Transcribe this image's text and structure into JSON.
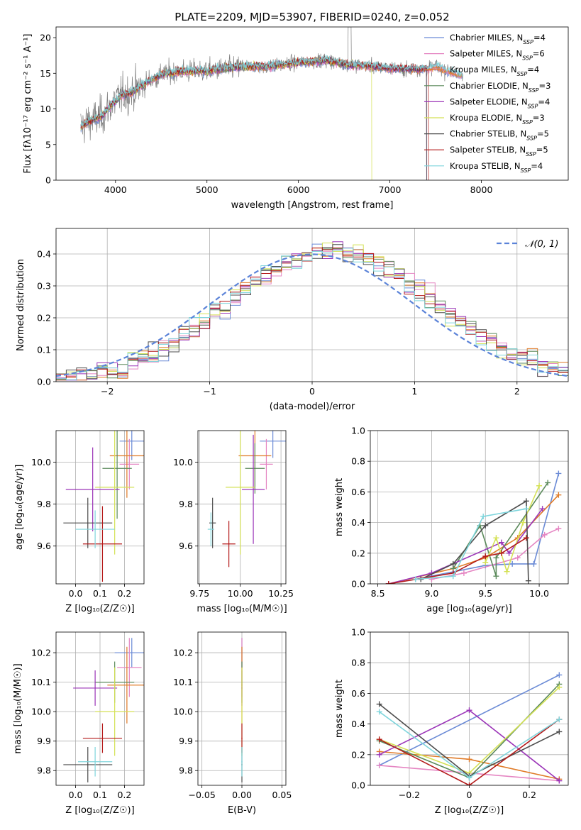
{
  "figure": {
    "title": "PLATE=2209, MJD=53907, FIBERID=0240, z=0.052"
  },
  "colors": [
    "#6b8bd6",
    "#e585c2",
    "#e07b28",
    "#5b8a5b",
    "#9b35b8",
    "#d4e155",
    "#4d4d4d",
    "#b41a1a",
    "#7fd5dc"
  ],
  "chart_data": [
    {
      "id": "spectrum",
      "type": "line",
      "xlabel": "wavelength [Angstrom, rest frame]",
      "ylabel": "Flux [fλ10⁻¹⁷ erg cm⁻² s⁻¹ A⁻¹]",
      "xlim": [
        3350,
        8950
      ],
      "ylim": [
        0,
        21.5
      ],
      "xticks": [
        4000,
        5000,
        6000,
        7000,
        8000
      ],
      "yticks": [
        0,
        5,
        10,
        15,
        20
      ],
      "grid": false,
      "legend": "upper-right",
      "data_color": "#7f7f7f",
      "data_continuum": [
        [
          3620,
          7.5
        ],
        [
          3700,
          8.2
        ],
        [
          3850,
          9.0
        ],
        [
          3950,
          10.5
        ],
        [
          4050,
          11.8
        ],
        [
          4200,
          12.5
        ],
        [
          4350,
          13.8
        ],
        [
          4500,
          14.8
        ],
        [
          4700,
          15.3
        ],
        [
          5000,
          15.3
        ],
        [
          5200,
          15.7
        ],
        [
          5400,
          15.9
        ],
        [
          5700,
          16.0
        ],
        [
          6000,
          16.5
        ],
        [
          6300,
          16.8
        ],
        [
          6560,
          16.2
        ],
        [
          6800,
          16.0
        ],
        [
          7000,
          15.7
        ],
        [
          7200,
          15.6
        ],
        [
          7400,
          15.6
        ],
        [
          7500,
          16.0
        ],
        [
          7700,
          15.0
        ],
        [
          7800,
          14.7
        ]
      ],
      "series": [
        {
          "name": "Chabrier MILES, N_SSP=4"
        },
        {
          "name": "Salpeter MILES, N_SSP=6"
        },
        {
          "name": "Kroupa MILES, N_SSP=4"
        },
        {
          "name": "Chabrier ELODIE, N_SSP=3"
        },
        {
          "name": "Salpeter ELODIE, N_SSP=4"
        },
        {
          "name": "Kroupa ELODIE, N_SSP=3"
        },
        {
          "name": "Chabrier STELIB, N_SSP=5"
        },
        {
          "name": "Salpeter STELIB, N_SSP=5"
        },
        {
          "name": "Kroupa STELIB, N_SSP=4"
        }
      ]
    },
    {
      "id": "residuals",
      "type": "line",
      "xlabel": "(data-model)/error",
      "ylabel": "Normed distribution",
      "xlim": [
        -2.5,
        2.5
      ],
      "ylim": [
        0,
        0.48
      ],
      "xticks": [
        -2,
        -1,
        0,
        1,
        2
      ],
      "yticks": [
        0.0,
        0.1,
        0.2,
        0.3,
        0.4
      ],
      "grid": true,
      "legend": "upper-right",
      "normal_curve_label": "𝒩(0, 1)",
      "bin_width": 0.1
    },
    {
      "id": "age_vs_Z",
      "type": "scatter",
      "xlabel": "Z [log₁₀(Z/Z☉)]",
      "ylabel": "age  [log₁₀(age/yr)]",
      "xlim": [
        -0.08,
        0.28
      ],
      "ylim": [
        9.42,
        10.15
      ],
      "xticks": [
        0.0,
        0.1,
        0.2
      ],
      "yticks": [
        9.6,
        9.8,
        10.0
      ],
      "grid": true,
      "points": [
        {
          "x": 0.23,
          "y": 10.1,
          "xerr": 0.05,
          "yerr": 0.09
        },
        {
          "x": 0.22,
          "y": 9.99,
          "xerr": 0.04,
          "yerr": 0.12
        },
        {
          "x": 0.21,
          "y": 10.03,
          "xerr": 0.07,
          "yerr": 0.2
        },
        {
          "x": 0.17,
          "y": 9.97,
          "xerr": 0.06,
          "yerr": 0.24
        },
        {
          "x": 0.07,
          "y": 9.87,
          "xerr": 0.11,
          "yerr": 0.2
        },
        {
          "x": 0.16,
          "y": 9.88,
          "xerr": 0.08,
          "yerr": 0.32
        },
        {
          "x": 0.05,
          "y": 9.71,
          "xerr": 0.1,
          "yerr": 0.12
        },
        {
          "x": 0.11,
          "y": 9.61,
          "xerr": 0.08,
          "yerr": 0.18
        },
        {
          "x": 0.08,
          "y": 9.68,
          "xerr": 0.08,
          "yerr": 0.09
        }
      ]
    },
    {
      "id": "age_vs_mass",
      "type": "scatter",
      "xlabel": "mass [log₁₀(M/M☉)]",
      "ylabel": "",
      "xlim": [
        9.74,
        10.28
      ],
      "ylim": [
        9.42,
        10.15
      ],
      "xticks": [
        9.75,
        10.0,
        10.25
      ],
      "yticks": [
        9.6,
        9.8,
        10.0
      ],
      "grid": true,
      "points": [
        {
          "x": 10.2,
          "y": 10.1,
          "xerr": 0.08,
          "yerr": 0.08
        },
        {
          "x": 10.16,
          "y": 9.99,
          "xerr": 0.04,
          "yerr": 0.12
        },
        {
          "x": 10.09,
          "y": 10.03,
          "xerr": 0.1,
          "yerr": 0.16
        },
        {
          "x": 10.09,
          "y": 9.97,
          "xerr": 0.06,
          "yerr": 0.12
        },
        {
          "x": 10.08,
          "y": 9.87,
          "xerr": 0.07,
          "yerr": 0.26
        },
        {
          "x": 10.0,
          "y": 9.88,
          "xerr": 0.09,
          "yerr": 0.32
        },
        {
          "x": 9.83,
          "y": 9.71,
          "xerr": 0.02,
          "yerr": 0.12
        },
        {
          "x": 9.93,
          "y": 9.61,
          "xerr": 0.04,
          "yerr": 0.11
        },
        {
          "x": 9.82,
          "y": 9.68,
          "xerr": 0.02,
          "yerr": 0.08
        }
      ]
    },
    {
      "id": "mass_weight_vs_age",
      "type": "line",
      "xlabel": "age  [log₁₀(age/yr)]",
      "ylabel": "mass weight",
      "xlim": [
        8.43,
        10.27
      ],
      "ylim": [
        0,
        1.0
      ],
      "xticks": [
        8.5,
        9.0,
        9.5,
        10.0
      ],
      "yticks": [
        0.0,
        0.2,
        0.4,
        0.6,
        0.8,
        1.0
      ],
      "grid": true,
      "series": [
        {
          "points": [
            [
              8.85,
              0.03
            ],
            [
              9.5,
              0.12
            ],
            [
              9.75,
              0.13
            ],
            [
              9.95,
              0.13
            ],
            [
              10.18,
              0.72
            ]
          ]
        },
        {
          "points": [
            [
              9.0,
              0.03
            ],
            [
              9.3,
              0.07
            ],
            [
              9.8,
              0.17
            ],
            [
              10.05,
              0.32
            ],
            [
              10.18,
              0.36
            ]
          ]
        },
        {
          "points": [
            [
              8.6,
              0.0
            ],
            [
              9.2,
              0.1
            ],
            [
              9.5,
              0.17
            ],
            [
              9.8,
              0.3
            ],
            [
              10.18,
              0.58
            ]
          ]
        },
        {
          "points": [
            [
              9.2,
              0.1
            ],
            [
              9.45,
              0.38
            ],
            [
              9.6,
              0.05
            ],
            [
              9.6,
              0.17
            ],
            [
              10.08,
              0.66
            ]
          ]
        },
        {
          "points": [
            [
              8.6,
              0.0
            ],
            [
              9.0,
              0.07
            ],
            [
              9.65,
              0.27
            ],
            [
              9.72,
              0.2
            ],
            [
              10.03,
              0.49
            ]
          ]
        },
        {
          "points": [
            [
              9.5,
              0.14
            ],
            [
              9.6,
              0.3
            ],
            [
              9.7,
              0.08
            ],
            [
              9.85,
              0.4
            ],
            [
              10.0,
              0.64
            ]
          ]
        },
        {
          "points": [
            [
              8.9,
              0.03
            ],
            [
              9.2,
              0.13
            ],
            [
              9.5,
              0.38
            ],
            [
              9.88,
              0.54
            ],
            [
              9.9,
              0.02
            ]
          ]
        },
        {
          "points": [
            [
              8.6,
              0.0
            ],
            [
              9.2,
              0.07
            ],
            [
              9.5,
              0.18
            ],
            [
              9.65,
              0.2
            ],
            [
              9.88,
              0.3
            ]
          ]
        },
        {
          "points": [
            [
              8.85,
              0.03
            ],
            [
              9.2,
              0.05
            ],
            [
              9.48,
              0.44
            ],
            [
              9.88,
              0.49
            ]
          ]
        }
      ]
    },
    {
      "id": "mass_vs_Z",
      "type": "scatter",
      "xlabel": "Z [log₁₀(Z/Z☉)]",
      "ylabel": "mass [log₁₀(M/M☉)]",
      "xlim": [
        -0.08,
        0.28
      ],
      "ylim": [
        9.75,
        10.27
      ],
      "xticks": [
        0.0,
        0.1,
        0.2
      ],
      "yticks": [
        9.8,
        9.9,
        10.0,
        10.1,
        10.2
      ],
      "grid": true,
      "points": [
        {
          "x": 0.23,
          "y": 10.2,
          "xerr": 0.07,
          "yerr": 0.05
        },
        {
          "x": 0.22,
          "y": 10.15,
          "xerr": 0.05,
          "yerr": 0.1
        },
        {
          "x": 0.21,
          "y": 10.09,
          "xerr": 0.08,
          "yerr": 0.13
        },
        {
          "x": 0.16,
          "y": 10.1,
          "xerr": 0.08,
          "yerr": 0.07
        },
        {
          "x": 0.08,
          "y": 10.08,
          "xerr": 0.09,
          "yerr": 0.06
        },
        {
          "x": 0.16,
          "y": 10.0,
          "xerr": 0.08,
          "yerr": 0.15
        },
        {
          "x": 0.05,
          "y": 9.82,
          "xerr": 0.1,
          "yerr": 0.06
        },
        {
          "x": 0.11,
          "y": 9.91,
          "xerr": 0.08,
          "yerr": 0.05
        },
        {
          "x": 0.08,
          "y": 9.83,
          "xerr": 0.07,
          "yerr": 0.05
        }
      ]
    },
    {
      "id": "mass_vs_ebv",
      "type": "scatter",
      "xlabel": "E(B-V)",
      "ylabel": "",
      "xlim": [
        -0.055,
        0.055
      ],
      "ylim": [
        9.75,
        10.27
      ],
      "xticks": [
        -0.05,
        0.0,
        0.05
      ],
      "yticks": [
        9.8,
        9.9,
        10.0,
        10.1,
        10.2
      ],
      "grid": true,
      "points": [
        {
          "x": 0.0,
          "y": 10.2,
          "yerr": 0.05
        },
        {
          "x": 0.0,
          "y": 10.15,
          "yerr": 0.1
        },
        {
          "x": 0.0,
          "y": 10.09,
          "yerr": 0.13
        },
        {
          "x": 0.0,
          "y": 10.1,
          "yerr": 0.07
        },
        {
          "x": 0.0,
          "y": 10.08,
          "yerr": 0.06
        },
        {
          "x": 0.0,
          "y": 10.0,
          "yerr": 0.15
        },
        {
          "x": 0.0,
          "y": 9.82,
          "yerr": 0.06
        },
        {
          "x": 0.0,
          "y": 9.91,
          "yerr": 0.05
        },
        {
          "x": 0.0,
          "y": 9.83,
          "yerr": 0.05
        }
      ]
    },
    {
      "id": "mass_weight_vs_Z",
      "type": "line",
      "xlabel": "Z [log₁₀(Z/Z☉)]",
      "ylabel": "mass weight",
      "xlim": [
        -0.33,
        0.33
      ],
      "ylim": [
        0,
        1.0
      ],
      "xticks": [
        -0.2,
        0.0,
        0.2
      ],
      "yticks": [
        0.0,
        0.2,
        0.4,
        0.6,
        0.8,
        1.0
      ],
      "grid": true,
      "series": [
        {
          "points": [
            [
              -0.3,
              0.13
            ],
            [
              0.3,
              0.72
            ]
          ]
        },
        {
          "points": [
            [
              -0.3,
              0.13
            ],
            [
              0.3,
              0.03
            ]
          ]
        },
        {
          "points": [
            [
              -0.3,
              0.22
            ],
            [
              0.0,
              0.17
            ],
            [
              0.3,
              0.04
            ]
          ]
        },
        {
          "points": [
            [
              -0.3,
              0.29
            ],
            [
              0.0,
              0.05
            ],
            [
              0.3,
              0.66
            ]
          ]
        },
        {
          "points": [
            [
              -0.3,
              0.2
            ],
            [
              0.0,
              0.49
            ],
            [
              0.3,
              0.03
            ]
          ]
        },
        {
          "points": [
            [
              -0.3,
              0.3
            ],
            [
              0.0,
              0.08
            ],
            [
              0.3,
              0.64
            ]
          ]
        },
        {
          "points": [
            [
              -0.3,
              0.53
            ],
            [
              0.0,
              0.06
            ],
            [
              0.3,
              0.35
            ]
          ]
        },
        {
          "points": [
            [
              -0.3,
              0.3
            ],
            [
              0.0,
              0.0
            ],
            [
              0.3,
              0.43
            ]
          ]
        },
        {
          "points": [
            [
              -0.3,
              0.48
            ],
            [
              0.0,
              0.05
            ],
            [
              0.3,
              0.43
            ]
          ]
        }
      ]
    }
  ]
}
